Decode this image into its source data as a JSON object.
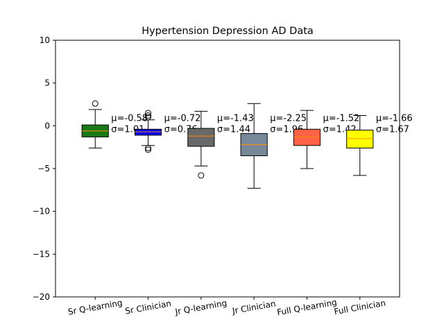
{
  "chart_data": {
    "type": "box",
    "title": "Hypertension Depression AD Data",
    "xlabel": "",
    "ylabel": "",
    "ylim": [
      -20,
      10
    ],
    "yticks": [
      -20,
      -15,
      -10,
      -5,
      0,
      5,
      10
    ],
    "ytick_labels": [
      "−20",
      "−15",
      "−10",
      "−5",
      "0",
      "5",
      "10"
    ],
    "grid": false,
    "categories": [
      "Sr Q-learning",
      "Sr Clinician",
      "Jr Q-learning",
      "Jr Clinician",
      "Full Q-learning",
      "Full Clinician"
    ],
    "boxes": [
      {
        "label": "Sr Q-learning",
        "color": "#1a7a1a",
        "whisker_low": -2.6,
        "q1": -1.3,
        "median": -0.6,
        "q3": 0.1,
        "whisker_high": 1.9,
        "fliers": [
          2.6
        ],
        "mean_label": "μ=-0.58",
        "std_label": "σ=1.01"
      },
      {
        "label": "Sr Clinician",
        "color": "#0000ff",
        "whisker_low": -2.3,
        "q1": -1.1,
        "median": -0.7,
        "q3": -0.4,
        "whisker_high": 0.7,
        "fliers": [
          1.0,
          1.2,
          1.5,
          -2.6,
          -2.8
        ],
        "mean_label": "μ=-0.72",
        "std_label": "σ=0.76"
      },
      {
        "label": "Jr Q-learning",
        "color": "#696969",
        "whisker_low": -4.7,
        "q1": -2.4,
        "median": -1.2,
        "q3": -0.3,
        "whisker_high": 1.7,
        "fliers": [
          -5.8
        ],
        "mean_label": "μ=-1.43",
        "std_label": "σ=1.44"
      },
      {
        "label": "Jr Clinician",
        "color": "#778899",
        "whisker_low": -7.3,
        "q1": -3.5,
        "median": -2.2,
        "q3": -0.9,
        "whisker_high": 2.6,
        "fliers": [],
        "mean_label": "μ=-2.25",
        "std_label": "σ=1.96"
      },
      {
        "label": "Full Q-learning",
        "color": "#ff6347",
        "whisker_low": -5.0,
        "q1": -2.3,
        "median": -1.3,
        "q3": -0.4,
        "whisker_high": 1.8,
        "fliers": [],
        "mean_label": "μ=-1.52",
        "std_label": "σ=1.42"
      },
      {
        "label": "Full Clinician",
        "color": "#ffff00",
        "whisker_low": -5.8,
        "q1": -2.6,
        "median": -1.5,
        "q3": -0.5,
        "whisker_high": 1.2,
        "fliers": [],
        "mean_label": "μ=-1.66",
        "std_label": "σ=1.67"
      }
    ],
    "median_color": "#ff8c00"
  }
}
